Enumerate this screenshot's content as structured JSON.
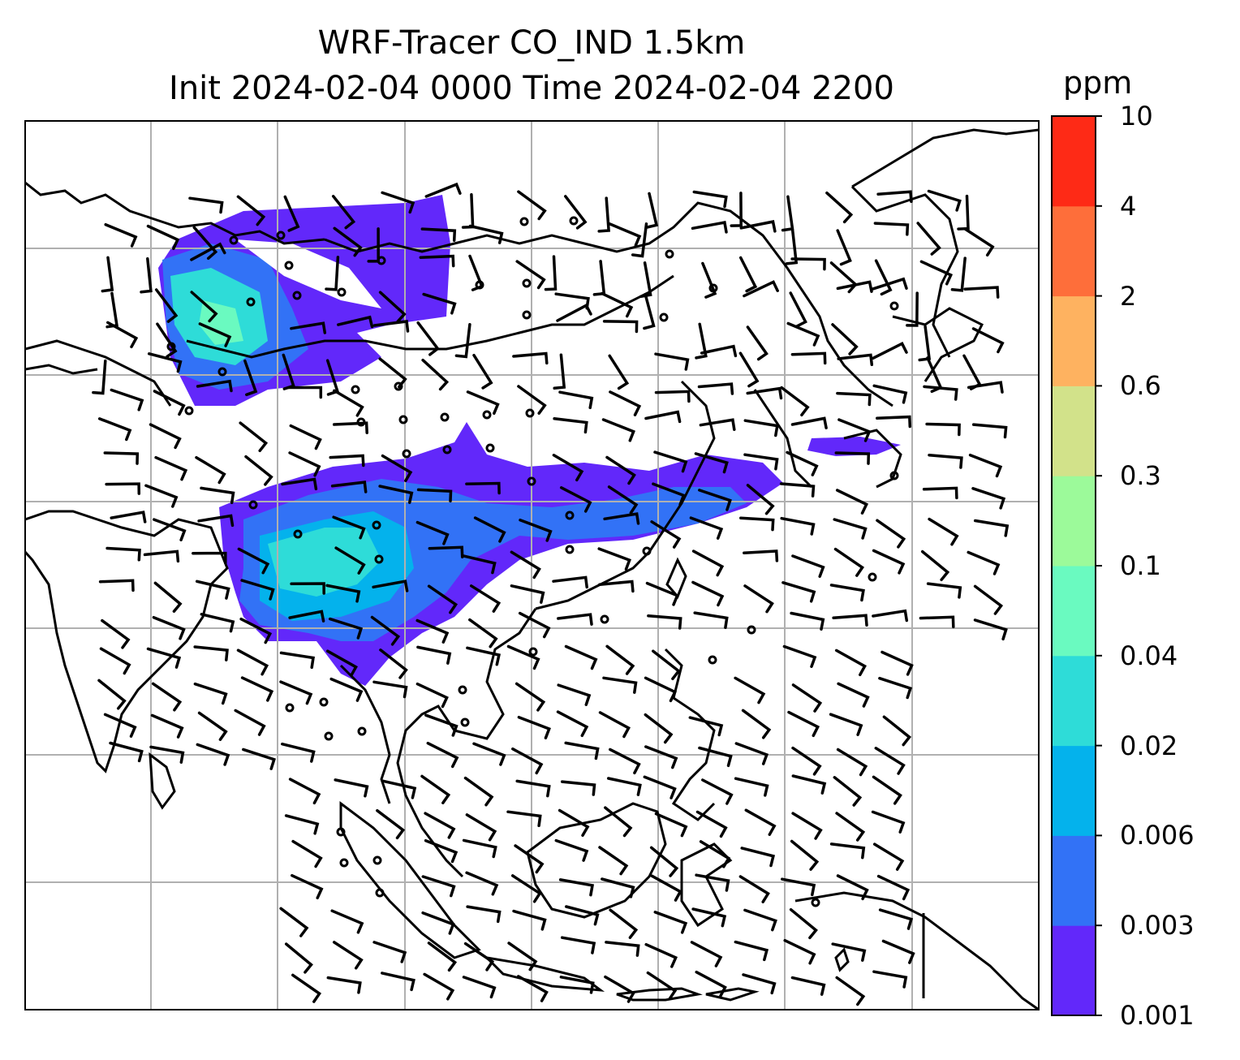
{
  "title_line1": "WRF-Tracer CO_IND 1.5km",
  "title_line2": "Init 2024-02-04 0000 Time 2024-02-04 2200",
  "colorbar": {
    "unit": "ppm",
    "ticks": [
      "0.001",
      "0.003",
      "0.006",
      "0.02",
      "0.04",
      "0.1",
      "0.3",
      "0.6",
      "2",
      "4",
      "10"
    ],
    "colors": [
      "#6228fa",
      "#3272f6",
      "#04b2ec",
      "#2edcd8",
      "#6afac0",
      "#9cfa9a",
      "#d2e28a",
      "#feb260",
      "#fe6e3a",
      "#fe2a16"
    ]
  },
  "map": {
    "features": [
      "coastline-icon",
      "country-border-icon",
      "gridline-icon",
      "wind-barb-icon",
      "calm-circle-icon"
    ],
    "shading_levels": [
      "0.001",
      "0.003",
      "0.006",
      "0.02",
      "0.04"
    ]
  }
}
